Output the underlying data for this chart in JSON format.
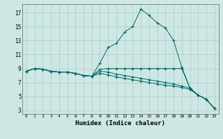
{
  "title": "",
  "xlabel": "Humidex (Indice chaleur)",
  "bg_color": "#cde8e4",
  "grid_color": "#b0c8c4",
  "line_color": "#006868",
  "xlim": [
    -0.5,
    23.5
  ],
  "ylim": [
    2.5,
    18.2
  ],
  "xticks": [
    0,
    1,
    2,
    3,
    4,
    5,
    6,
    7,
    8,
    9,
    10,
    11,
    12,
    13,
    14,
    15,
    16,
    17,
    18,
    19,
    20,
    21,
    22,
    23
  ],
  "yticks": [
    3,
    5,
    7,
    9,
    11,
    13,
    15,
    17
  ],
  "series": [
    [
      8.6,
      9.0,
      8.9,
      8.6,
      8.5,
      8.5,
      8.3,
      8.0,
      7.9,
      9.8,
      12.0,
      12.6,
      14.2,
      15.0,
      17.5,
      16.6,
      15.5,
      14.8,
      13.0,
      9.2,
      6.2,
      5.2,
      4.6,
      3.3
    ],
    [
      8.6,
      9.0,
      8.9,
      8.6,
      8.5,
      8.5,
      8.3,
      8.0,
      7.9,
      8.9,
      9.0,
      9.0,
      9.0,
      9.0,
      9.0,
      9.0,
      9.0,
      9.0,
      9.0,
      9.0,
      6.2,
      5.2,
      4.6,
      3.3
    ],
    [
      8.6,
      9.0,
      8.9,
      8.6,
      8.5,
      8.5,
      8.3,
      8.0,
      7.9,
      8.6,
      8.5,
      8.2,
      8.0,
      7.8,
      7.6,
      7.4,
      7.2,
      7.0,
      6.8,
      6.5,
      6.2,
      5.2,
      4.6,
      3.3
    ],
    [
      8.6,
      9.0,
      8.9,
      8.6,
      8.5,
      8.5,
      8.3,
      8.0,
      7.9,
      8.3,
      8.1,
      7.8,
      7.6,
      7.4,
      7.2,
      7.0,
      6.8,
      6.6,
      6.5,
      6.3,
      6.0,
      5.2,
      4.6,
      3.3
    ]
  ]
}
